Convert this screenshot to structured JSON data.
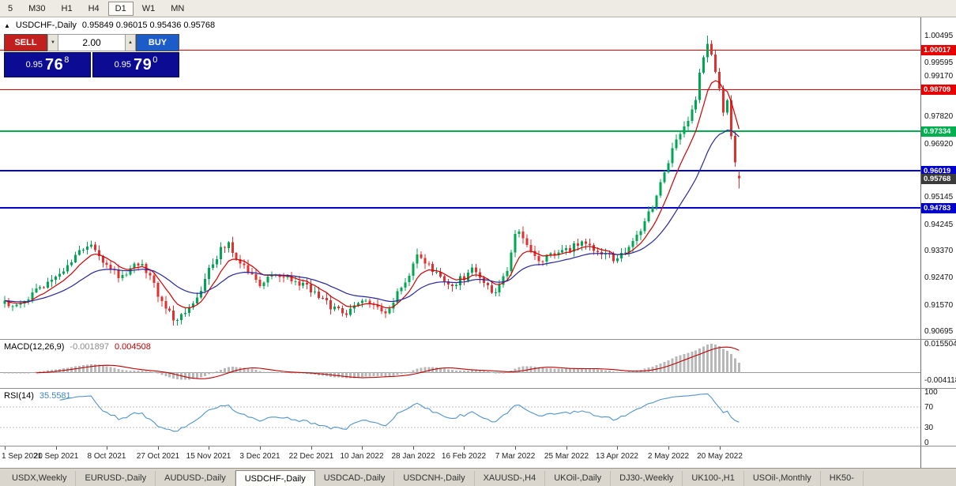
{
  "toolbar": {
    "timeframes": [
      {
        "label": "5",
        "active": false
      },
      {
        "label": "M30",
        "active": false
      },
      {
        "label": "H1",
        "active": false
      },
      {
        "label": "H4",
        "active": false
      },
      {
        "label": "D1",
        "active": true
      },
      {
        "label": "W1",
        "active": false
      },
      {
        "label": "MN",
        "active": false
      }
    ]
  },
  "chart_header": {
    "collapse_icon": "▲",
    "symbol": "USDCHF-,Daily",
    "ohlc": "0.95849 0.96015 0.95436 0.95768"
  },
  "trade_panel": {
    "sell_label": "SELL",
    "buy_label": "BUY",
    "lot_value": "2.00",
    "spinner_down": "▼",
    "spinner_up": "▲",
    "bid": {
      "prefix": "0.95",
      "big": "76",
      "sup": "8"
    },
    "ask": {
      "prefix": "0.95",
      "big": "79",
      "sup": "0"
    },
    "colors": {
      "sell_bg": "#c2201f",
      "buy_bg": "#1b5cc8",
      "price_bg": "#0b0b94"
    }
  },
  "bottom_tabs": [
    {
      "label": "USDX,Weekly",
      "active": false
    },
    {
      "label": "EURUSD-,Daily",
      "active": false
    },
    {
      "label": "AUDUSD-,Daily",
      "active": false
    },
    {
      "label": "USDCHF-,Daily",
      "active": true
    },
    {
      "label": "USDCAD-,Daily",
      "active": false
    },
    {
      "label": "USDCNH-,Daily",
      "active": false
    },
    {
      "label": "XAUUSD-,H4",
      "active": false
    },
    {
      "label": "UKOil-,Daily",
      "active": false
    },
    {
      "label": "DJ30-,Weekly",
      "active": false
    },
    {
      "label": "UK100-,H1",
      "active": false
    },
    {
      "label": "USOil-,Monthly",
      "active": false
    },
    {
      "label": "HK50-",
      "active": false
    }
  ],
  "chart_data": {
    "type": "candlestick",
    "symbol": "USDCHF",
    "timeframe": "Daily",
    "last_ohlc": {
      "open": 0.95849,
      "high": 0.96015,
      "low": 0.95436,
      "close": 0.95768
    },
    "price_axis": {
      "min": 0.9044,
      "max": 1.011,
      "ticks": [
        1.00495,
        0.99595,
        0.9917,
        0.9782,
        0.9692,
        0.95145,
        0.94245,
        0.9337,
        0.9247,
        0.9157,
        0.90695
      ]
    },
    "levels": [
      {
        "price": 1.00017,
        "color": "#e60000",
        "width": 1,
        "tag": "1.00017"
      },
      {
        "price": 0.98709,
        "color": "#e60000",
        "width": 1,
        "tag": "0.98709"
      },
      {
        "price": 0.97334,
        "color": "#00b050",
        "width": 2,
        "tag": "0.97334"
      },
      {
        "price": 0.96019,
        "color": "#0000cd",
        "width": 2,
        "tag": "0.96019"
      },
      {
        "price": 0.94783,
        "color": "#0000cd",
        "width": 2,
        "tag": "0.94783"
      }
    ],
    "last_price_tag": {
      "price": 0.95768,
      "bg": "#3c3c3c",
      "tag": "0.95768"
    },
    "bars_total": 188,
    "label_every": 13,
    "x_labels": [
      "1 Sep 2021",
      "20 Sep 2021",
      "8 Oct 2021",
      "27 Oct 2021",
      "15 Nov 2021",
      "3 Dec 2021",
      "22 Dec 2021",
      "10 Jan 2022",
      "28 Jan 2022",
      "16 Feb 2022",
      "7 Mar 2022",
      "25 Mar 2022",
      "13 Apr 2022",
      "2 May 2022",
      "20 May 2022"
    ],
    "close_path_anchors": [
      [
        0,
        0.916
      ],
      [
        3,
        0.915
      ],
      [
        6,
        0.9185
      ],
      [
        10,
        0.9215
      ],
      [
        13,
        0.924
      ],
      [
        16,
        0.929
      ],
      [
        19,
        0.933
      ],
      [
        22,
        0.935
      ],
      [
        24,
        0.932
      ],
      [
        26,
        0.9295
      ],
      [
        29,
        0.9255
      ],
      [
        32,
        0.9275
      ],
      [
        35,
        0.93
      ],
      [
        37,
        0.925
      ],
      [
        39,
        0.9195
      ],
      [
        41,
        0.914
      ],
      [
        44,
        0.9105
      ],
      [
        47,
        0.914
      ],
      [
        50,
        0.921
      ],
      [
        52,
        0.9275
      ],
      [
        55,
        0.934
      ],
      [
        57,
        0.9355
      ],
      [
        59,
        0.932
      ],
      [
        62,
        0.9265
      ],
      [
        65,
        0.923
      ],
      [
        68,
        0.9245
      ],
      [
        71,
        0.926
      ],
      [
        74,
        0.9235
      ],
      [
        77,
        0.9215
      ],
      [
        80,
        0.9185
      ],
      [
        83,
        0.915
      ],
      [
        86,
        0.9128
      ],
      [
        89,
        0.915
      ],
      [
        91,
        0.9168
      ],
      [
        94,
        0.9145
      ],
      [
        97,
        0.9132
      ],
      [
        100,
        0.919
      ],
      [
        103,
        0.9265
      ],
      [
        105,
        0.933
      ],
      [
        107,
        0.93
      ],
      [
        110,
        0.9255
      ],
      [
        113,
        0.9222
      ],
      [
        116,
        0.924
      ],
      [
        119,
        0.927
      ],
      [
        122,
        0.924
      ],
      [
        124,
        0.92
      ],
      [
        126,
        0.922
      ],
      [
        128,
        0.928
      ],
      [
        130,
        0.939
      ],
      [
        131,
        0.9405
      ],
      [
        133,
        0.9345
      ],
      [
        136,
        0.9295
      ],
      [
        139,
        0.932
      ],
      [
        142,
        0.933
      ],
      [
        145,
        0.935
      ],
      [
        148,
        0.9365
      ],
      [
        151,
        0.934
      ],
      [
        154,
        0.932
      ],
      [
        156,
        0.9308
      ],
      [
        158,
        0.933
      ],
      [
        161,
        0.9385
      ],
      [
        164,
        0.9455
      ],
      [
        166,
        0.952
      ],
      [
        168,
        0.96
      ],
      [
        170,
        0.9672
      ],
      [
        172,
        0.9718
      ],
      [
        174,
        0.976
      ],
      [
        176,
        0.9845
      ],
      [
        177,
        0.992
      ],
      [
        178,
        0.9985
      ],
      [
        179,
        1.003
      ],
      [
        180,
        0.9985
      ],
      [
        181,
        0.994
      ],
      [
        182,
        0.987
      ],
      [
        183,
        0.98
      ],
      [
        184,
        0.9825
      ],
      [
        185,
        0.9705
      ],
      [
        186,
        0.9618
      ],
      [
        187,
        0.95768
      ]
    ],
    "candle_colors": {
      "up": "#00a651",
      "down": "#e03030"
    },
    "moving_averages": [
      {
        "period": 8,
        "type": "ema",
        "color": "#d40000"
      },
      {
        "period": 24,
        "type": "ema",
        "color": "#26269c"
      }
    ],
    "macd": {
      "label": "MACD(12,26,9)",
      "value_main": "-0.001897",
      "value_signal": "0.004508",
      "axis_max_label": "0.015504",
      "axis_min_label": "-0.004118",
      "scale": {
        "min": -0.0083,
        "max": 0.0177
      },
      "histogram_color": "#b8b8b8",
      "signal_color": "#c00000",
      "fast": 12,
      "slow": 26,
      "signal": 9
    },
    "rsi": {
      "label": "RSI(14)",
      "value": "35.5581",
      "period": 14,
      "levels": [
        70,
        30
      ],
      "axis_ticks": [
        100,
        70,
        30,
        0
      ],
      "line_color": "#4f94cd",
      "scale": {
        "min": 0,
        "max": 100
      }
    },
    "noise_seed": 12345,
    "noise_amplitude": 0.0012,
    "wick_amplitude": 0.0016
  }
}
